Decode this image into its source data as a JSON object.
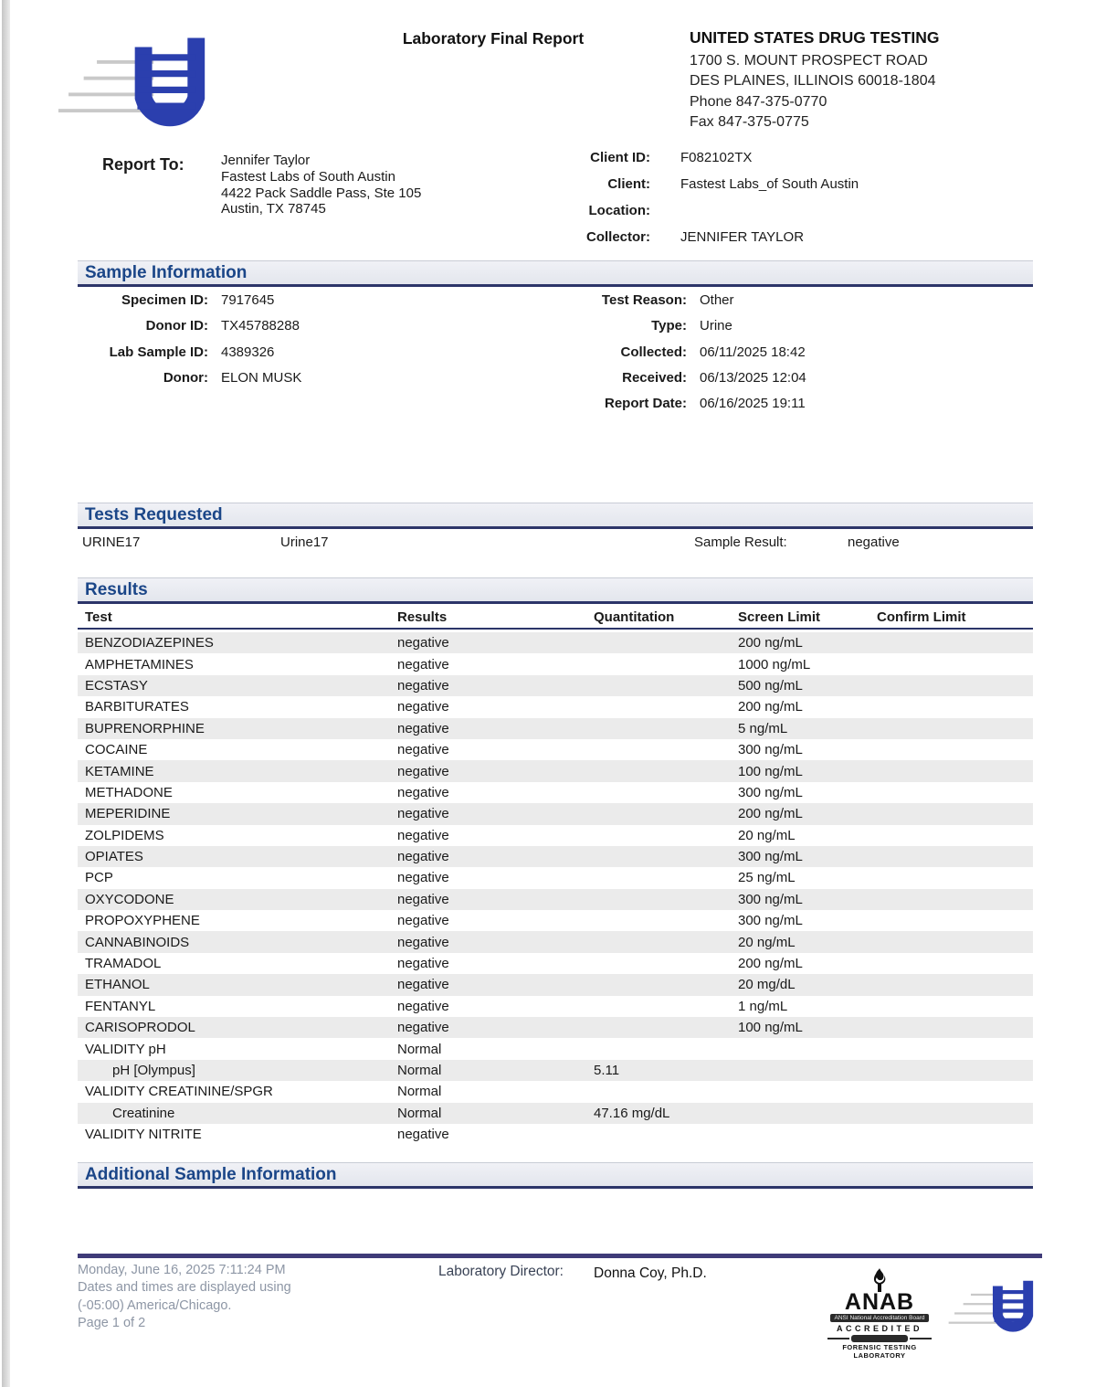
{
  "colors": {
    "accent_navy": "#1b4688",
    "band_underline": "#2c3569",
    "logo_blue": "#2b3fae",
    "row_stripe": "#ebebeb",
    "footer_line": "#3f3b78",
    "footer_text": "#8d96a5"
  },
  "header": {
    "title": "Laboratory Final Report",
    "logo": "u-testtube-logo",
    "lab_name": "UNITED STATES DRUG TESTING",
    "address_line1": "1700 S. MOUNT PROSPECT ROAD",
    "address_line2": "DES PLAINES, ILLINOIS 60018-1804",
    "phone": "Phone 847-375-0770",
    "fax": "Fax 847-375-0775"
  },
  "report_to": {
    "label": "Report To:",
    "lines": [
      "Jennifer Taylor",
      "Fastest Labs of South Austin",
      "4422 Pack Saddle Pass, Ste 105",
      "Austin, TX  78745"
    ]
  },
  "client": {
    "rows": [
      {
        "label": "Client ID:",
        "value": "F082102TX"
      },
      {
        "label": "Client:",
        "value": "Fastest Labs_of South Austin"
      },
      {
        "label": "Location:",
        "value": ""
      },
      {
        "label": "Collector:",
        "value": "JENNIFER TAYLOR"
      }
    ]
  },
  "sample_information": {
    "heading": "Sample Information",
    "left": [
      {
        "label": "Specimen ID:",
        "value": "7917645"
      },
      {
        "label": "Donor ID:",
        "value": "TX45788288"
      },
      {
        "label": "Lab Sample ID:",
        "value": "4389326"
      },
      {
        "label": "Donor:",
        "value": "ELON MUSK"
      }
    ],
    "right": [
      {
        "label": "Test Reason:",
        "value": "Other"
      },
      {
        "label": "Type:",
        "value": "Urine"
      },
      {
        "label": "Collected:",
        "value": "06/11/2025 18:42"
      },
      {
        "label": "Received:",
        "value": "06/13/2025 12:04"
      },
      {
        "label": "Report Date:",
        "value": "06/16/2025 19:11"
      }
    ]
  },
  "tests_requested": {
    "heading": "Tests Requested",
    "code": "URINE17",
    "name": "Urine17",
    "sample_result_label": "Sample Result:",
    "sample_result": "negative"
  },
  "results": {
    "heading": "Results",
    "columns": [
      "Test",
      "Results",
      "Quantitation",
      "Screen Limit",
      "Confirm Limit"
    ],
    "rows": [
      {
        "test": "BENZODIAZEPINES",
        "result": "negative",
        "quantitation": "",
        "screen_limit": "200 ng/mL",
        "confirm_limit": "",
        "indent": false
      },
      {
        "test": "AMPHETAMINES",
        "result": "negative",
        "quantitation": "",
        "screen_limit": "1000 ng/mL",
        "confirm_limit": "",
        "indent": false
      },
      {
        "test": "ECSTASY",
        "result": "negative",
        "quantitation": "",
        "screen_limit": "500 ng/mL",
        "confirm_limit": "",
        "indent": false
      },
      {
        "test": "BARBITURATES",
        "result": "negative",
        "quantitation": "",
        "screen_limit": "200 ng/mL",
        "confirm_limit": "",
        "indent": false
      },
      {
        "test": "BUPRENORPHINE",
        "result": "negative",
        "quantitation": "",
        "screen_limit": "5 ng/mL",
        "confirm_limit": "",
        "indent": false
      },
      {
        "test": "COCAINE",
        "result": "negative",
        "quantitation": "",
        "screen_limit": "300 ng/mL",
        "confirm_limit": "",
        "indent": false
      },
      {
        "test": "KETAMINE",
        "result": "negative",
        "quantitation": "",
        "screen_limit": "100 ng/mL",
        "confirm_limit": "",
        "indent": false
      },
      {
        "test": "METHADONE",
        "result": "negative",
        "quantitation": "",
        "screen_limit": "300 ng/mL",
        "confirm_limit": "",
        "indent": false
      },
      {
        "test": "MEPERIDINE",
        "result": "negative",
        "quantitation": "",
        "screen_limit": "200 ng/mL",
        "confirm_limit": "",
        "indent": false
      },
      {
        "test": "ZOLPIDEMS",
        "result": "negative",
        "quantitation": "",
        "screen_limit": "20 ng/mL",
        "confirm_limit": "",
        "indent": false
      },
      {
        "test": "OPIATES",
        "result": "negative",
        "quantitation": "",
        "screen_limit": "300 ng/mL",
        "confirm_limit": "",
        "indent": false
      },
      {
        "test": "PCP",
        "result": "negative",
        "quantitation": "",
        "screen_limit": "25 ng/mL",
        "confirm_limit": "",
        "indent": false
      },
      {
        "test": "OXYCODONE",
        "result": "negative",
        "quantitation": "",
        "screen_limit": "300 ng/mL",
        "confirm_limit": "",
        "indent": false
      },
      {
        "test": "PROPOXYPHENE",
        "result": "negative",
        "quantitation": "",
        "screen_limit": "300 ng/mL",
        "confirm_limit": "",
        "indent": false
      },
      {
        "test": "CANNABINOIDS",
        "result": "negative",
        "quantitation": "",
        "screen_limit": "20 ng/mL",
        "confirm_limit": "",
        "indent": false
      },
      {
        "test": "TRAMADOL",
        "result": "negative",
        "quantitation": "",
        "screen_limit": "200 ng/mL",
        "confirm_limit": "",
        "indent": false
      },
      {
        "test": "ETHANOL",
        "result": "negative",
        "quantitation": "",
        "screen_limit": "20 mg/dL",
        "confirm_limit": "",
        "indent": false
      },
      {
        "test": "FENTANYL",
        "result": "negative",
        "quantitation": "",
        "screen_limit": "1 ng/mL",
        "confirm_limit": "",
        "indent": false
      },
      {
        "test": "CARISOPRODOL",
        "result": "negative",
        "quantitation": "",
        "screen_limit": "100 ng/mL",
        "confirm_limit": "",
        "indent": false
      },
      {
        "test": "VALIDITY pH",
        "result": "Normal",
        "quantitation": "",
        "screen_limit": "",
        "confirm_limit": "",
        "indent": false
      },
      {
        "test": "pH [Olympus]",
        "result": "Normal",
        "quantitation": "5.11",
        "screen_limit": "",
        "confirm_limit": "",
        "indent": true
      },
      {
        "test": "VALIDITY CREATININE/SPGR",
        "result": "Normal",
        "quantitation": "",
        "screen_limit": "",
        "confirm_limit": "",
        "indent": false
      },
      {
        "test": "Creatinine",
        "result": "Normal",
        "quantitation": "47.16 mg/dL",
        "screen_limit": "",
        "confirm_limit": "",
        "indent": true
      },
      {
        "test": "VALIDITY NITRITE",
        "result": "negative",
        "quantitation": "",
        "screen_limit": "",
        "confirm_limit": "",
        "indent": false
      }
    ]
  },
  "additional_sample_information": {
    "heading": "Additional Sample Information"
  },
  "footer": {
    "timestamp": "Monday, June 16, 2025 7:11:24 PM",
    "tz_line1": "Dates and times are displayed using",
    "tz_line2": "(-05:00) America/Chicago.",
    "page_number": "Page 1 of 2",
    "director_label": "Laboratory Director:",
    "director_name": "Donna Coy, Ph.D.",
    "anab": {
      "word": "ANAB",
      "board_line": "ANSI National Accreditation Board",
      "accredited": "ACCREDITED",
      "scope_line1": "FORENSIC TESTING",
      "scope_line2": "LABORATORY"
    }
  }
}
